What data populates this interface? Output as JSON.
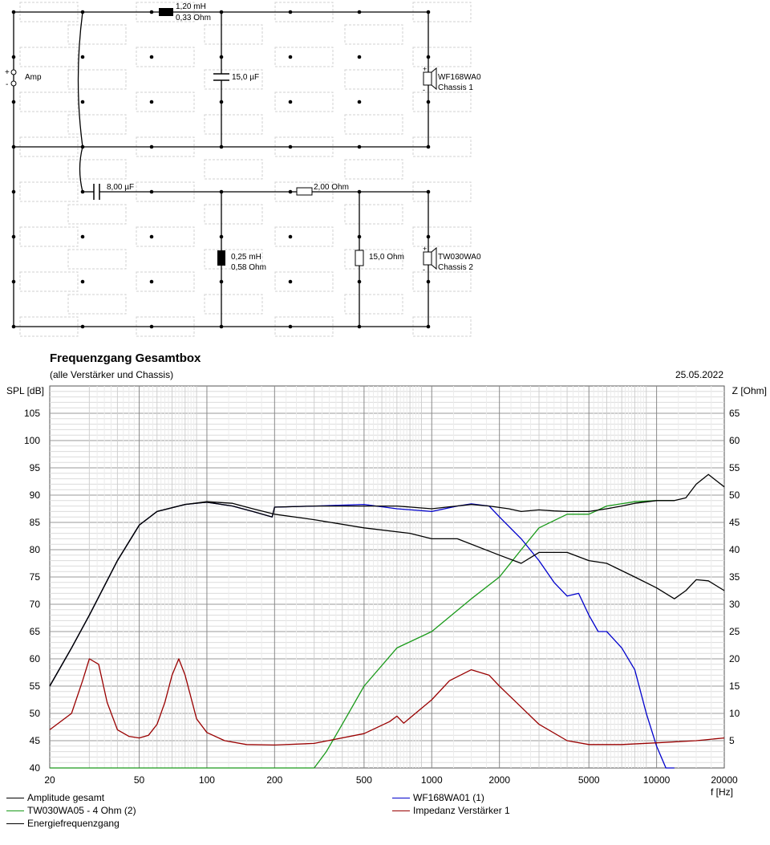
{
  "schematic": {
    "inductor1_value": "1,20 mH",
    "inductor1_res": "0,33 Ohm",
    "cap1": "15,0 µF",
    "amp": "Amp",
    "plus": "+",
    "minus": "-",
    "chassis1_name": "WF168WA0",
    "chassis1_label": "Chassis 1",
    "cap2": "8,00 µF",
    "res_series": "2,00 Ohm",
    "inductor2_value": "0,25 mH",
    "inductor2_res": "0,58 Ohm",
    "res_shunt": "15,0 Ohm",
    "chassis2_name": "TW030WA0",
    "chassis2_label": "Chassis 2"
  },
  "chart_data": {
    "type": "line",
    "title": "Frequenzgang Gesamtbox",
    "subtitle": "(alle Verstärker und Chassis)",
    "date": "25.05.2022",
    "ylabel_left": "SPL [dB]",
    "ylabel_right": "Z [Ohm]",
    "xlabel": "f [Hz]",
    "xscale": "log",
    "xlim": [
      20,
      20000
    ],
    "ylim_left": [
      40,
      110
    ],
    "ylim_right": [
      0,
      70
    ],
    "x_ticks": [
      "20",
      "50",
      "100",
      "200",
      "500",
      "1000",
      "2000",
      "5000",
      "10000",
      "20000"
    ],
    "y_ticks_left": [
      "105",
      "100",
      "95",
      "90",
      "85",
      "80",
      "75",
      "70",
      "65",
      "60",
      "55",
      "50",
      "45",
      "40"
    ],
    "y_ticks_right": [
      "65",
      "60",
      "55",
      "50",
      "45",
      "40",
      "35",
      "30",
      "25",
      "20",
      "15",
      "10",
      "5"
    ],
    "grid": true,
    "series": [
      {
        "name": "Amplitude gesamt",
        "color": "#000000",
        "axis": "left",
        "x": [
          20,
          25,
          30,
          40,
          50,
          60,
          80,
          100,
          130,
          160,
          195,
          200,
          300,
          500,
          700,
          1000,
          1500,
          1800,
          2200,
          2500,
          3000,
          3500,
          4000,
          5000,
          6000,
          7000,
          8000,
          10000,
          12000,
          13500,
          15000,
          17000,
          20000
        ],
        "y": [
          55,
          62,
          68,
          78,
          84.5,
          87,
          88.3,
          88.7,
          88,
          87,
          86,
          87.8,
          88,
          88,
          88,
          87.5,
          88.3,
          88,
          87.5,
          87,
          87.3,
          87.1,
          87,
          87,
          87.5,
          88,
          88.5,
          89,
          89,
          89.5,
          92,
          93.8,
          91.5
        ]
      },
      {
        "name": "WF168WA01 (1)",
        "color": "#0000cc",
        "axis": "left",
        "x": [
          20,
          25,
          30,
          40,
          50,
          60,
          80,
          100,
          130,
          160,
          195,
          200,
          300,
          500,
          700,
          1000,
          1300,
          1500,
          1800,
          2000,
          2500,
          3000,
          3500,
          4000,
          4500,
          5000,
          5500,
          6000,
          7000,
          8000,
          9000,
          10000,
          11000,
          12000
        ],
        "y": [
          55,
          62,
          68,
          78,
          84.5,
          87,
          88.3,
          88.7,
          88,
          87,
          86,
          87.8,
          88,
          88.3,
          87.5,
          87,
          88,
          88.4,
          88,
          86,
          82,
          78,
          74,
          71.5,
          72,
          68,
          65,
          65,
          62,
          58,
          50,
          44,
          38,
          30
        ]
      },
      {
        "name": "TW030WA05 - 4 Ohm (2)",
        "color": "#1a9a1a",
        "axis": "left",
        "x": [
          20,
          100,
          200,
          300,
          340,
          400,
          500,
          700,
          1000,
          1500,
          2000,
          2500,
          3000,
          4000,
          5000,
          6000,
          8000,
          10000,
          12000
        ],
        "y": [
          40,
          40,
          40,
          40,
          43,
          48,
          55,
          62,
          65,
          71,
          75,
          80,
          84,
          86.5,
          86.5,
          88,
          88.8,
          89,
          89
        ]
      },
      {
        "name": "Impedanz Verstärker 1",
        "color": "#990000",
        "axis": "right",
        "x": [
          20,
          25,
          28,
          30,
          33,
          36,
          40,
          45,
          50,
          55,
          60,
          65,
          70,
          75,
          80,
          90,
          100,
          120,
          150,
          200,
          300,
          500,
          650,
          700,
          750,
          1000,
          1200,
          1500,
          1800,
          2000,
          3000,
          4000,
          5000,
          7000,
          10000,
          15000,
          20000
        ],
        "y": [
          7,
          10,
          16,
          20,
          19,
          12,
          7,
          5.8,
          5.5,
          6,
          8,
          12,
          17,
          20,
          17,
          9,
          6.5,
          5,
          4.3,
          4.2,
          4.5,
          6.3,
          8.5,
          9.5,
          8.2,
          12.5,
          16,
          18,
          17,
          15,
          8,
          5,
          4.3,
          4.3,
          4.6,
          5,
          5.5
        ]
      },
      {
        "name": "Energiefrequenzgang",
        "color": "#000000",
        "axis": "left",
        "x": [
          20,
          25,
          30,
          40,
          50,
          60,
          80,
          100,
          130,
          160,
          200,
          300,
          500,
          800,
          1000,
          1300,
          2000,
          2500,
          3000,
          4000,
          5000,
          6000,
          8000,
          10000,
          12000,
          13500,
          15000,
          17000,
          20000
        ],
        "y": [
          55,
          62,
          68,
          78,
          84.5,
          87,
          88.3,
          88.8,
          88.5,
          87.5,
          86.5,
          85.5,
          84,
          83,
          82,
          82,
          79,
          77.5,
          79.5,
          79.5,
          78,
          77.5,
          75,
          73,
          71,
          72.5,
          74.5,
          74.3,
          72.5
        ]
      }
    ]
  }
}
